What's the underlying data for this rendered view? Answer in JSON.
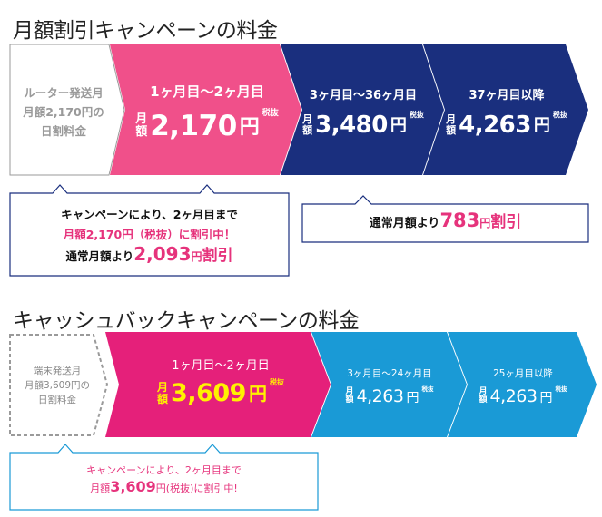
{
  "section1": {
    "title": "月額割引キャンペーンの料金",
    "pre": {
      "line1": "ルーター発送月",
      "line2": "月額2,170円の",
      "line3": "日割料金"
    },
    "segments": [
      {
        "period": "1ヶ月目〜2ヶ月目",
        "tate1": "月",
        "tate2": "額",
        "amount": "2,170",
        "yen": "円",
        "zei1": "税",
        "zei2": "抜"
      },
      {
        "period": "3ヶ月目〜36ヶ月目",
        "tate1": "月",
        "tate2": "額",
        "amount": "3,480",
        "yen": "円",
        "zei1": "税",
        "zei2": "抜"
      },
      {
        "period": "37ヶ月目以降",
        "tate1": "月",
        "tate2": "額",
        "amount": "4,263",
        "yen": "円",
        "zei1": "税",
        "zei2": "抜"
      }
    ],
    "note_left": {
      "line1": "キャンペーンにより、2ヶ月目まで",
      "line2": "月額2,170円（税抜）に割引中！",
      "line3_a": "通常月額より",
      "line3_b": "2,093",
      "line3_c": "円",
      "line3_d": "割引"
    },
    "note_right": {
      "a": "通常月額より",
      "b": "783",
      "c": "円",
      "d": "割引"
    },
    "colors": {
      "pink": "#f0508a",
      "navy": "#1a2f7e",
      "border": "#1a2f7e",
      "accent": "#e6337c"
    }
  },
  "section2": {
    "title": "キャッシュバックキャンペーンの料金",
    "pre": {
      "line1": "端末発送月",
      "line2": "月額3,609円の",
      "line3": "日割料金"
    },
    "segments": [
      {
        "period": "1ヶ月目〜2ヶ月目",
        "tate1": "月",
        "tate2": "額",
        "amount": "3,609",
        "yen": "円",
        "zei1": "税",
        "zei2": "抜"
      },
      {
        "period": "3ヶ月目〜24ヶ月目",
        "tate1": "月",
        "tate2": "額",
        "amount": "4,263",
        "yen": "円",
        "zei1": "税",
        "zei2": "抜"
      },
      {
        "period": "25ヶ月目以降",
        "tate1": "月",
        "tate2": "額",
        "amount": "4,263",
        "yen": "円",
        "zei1": "税",
        "zei2": "抜"
      }
    ],
    "note": {
      "line1": "キャンペーンにより、2ヶ月目まで",
      "line2_a": "月額",
      "line2_b": "3,609",
      "line2_c": "円(税抜)に割引中!"
    },
    "colors": {
      "pink": "#e5207a",
      "blue": "#1a9ad6",
      "border": "#1a9ad6",
      "yellow": "#fff200"
    }
  }
}
